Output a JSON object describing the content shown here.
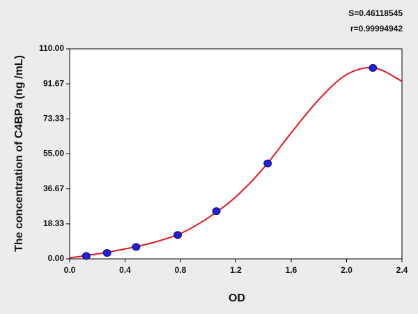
{
  "chart_data": {
    "type": "scatter",
    "annotations": [
      "S=0.46118545",
      "r=0.99994942"
    ],
    "y_label": "The concentration of C4BPa (ng /mL)",
    "x_label": "OD",
    "x": [
      0.12,
      0.27,
      0.48,
      0.78,
      1.06,
      1.43,
      2.19
    ],
    "values": [
      1.56,
      3.12,
      6.25,
      12.5,
      25,
      50,
      100
    ],
    "color": "#1f1fe0",
    "fit": {
      "color": "#e8121a",
      "x": [
        0,
        0.2,
        0.4,
        0.6,
        0.8,
        1.0,
        1.2,
        1.4,
        1.6,
        1.8,
        2.0,
        2.2,
        2.4
      ],
      "values": [
        0.5,
        2.6,
        5.2,
        8.5,
        13.3,
        21.5,
        32.5,
        47.5,
        66,
        83.5,
        96.5,
        100,
        93
      ]
    },
    "xlim": [
      0,
      2.4
    ],
    "ylim": [
      0,
      110
    ],
    "xticks": [
      {
        "value": 0,
        "label": "0.0"
      },
      0.4,
      0.8,
      1.2,
      1.6,
      {
        "value": 2,
        "label": "2.0"
      },
      2.4
    ],
    "yticks": [
      {
        "value": 0,
        "label": "0.00"
      },
      18.33,
      36.67,
      {
        "value": 55,
        "label": "55.00"
      },
      73.33,
      91.67,
      {
        "value": 110,
        "label": "110.00"
      }
    ]
  }
}
